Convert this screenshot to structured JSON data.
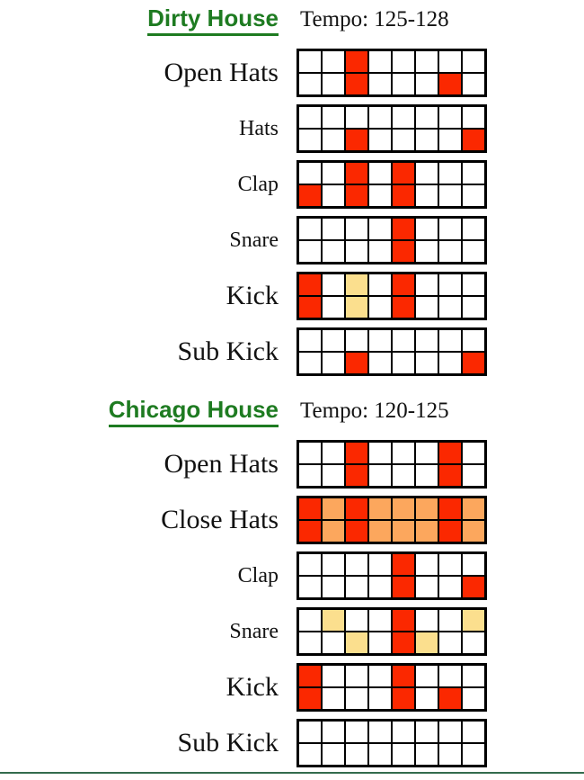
{
  "colors": {
    "red": "#fb2800",
    "orange": "#fca75d",
    "yellow": "#fbdf8e",
    "empty": "#ffffff",
    "title_green": "#1e7b21",
    "divider_green": "#336b4d",
    "grid_line": "#000000"
  },
  "sections": [
    {
      "title": "Dirty House",
      "tempo": "Tempo: 125-128",
      "rows": [
        {
          "label": "Open Hats",
          "steps": [
            [
              "",
              "",
              "red",
              "",
              "",
              "",
              "",
              ""
            ],
            [
              "",
              "",
              "red",
              "",
              "",
              "",
              "red",
              ""
            ]
          ]
        },
        {
          "label": "Hats",
          "steps": [
            [
              "",
              "",
              "",
              "",
              "",
              "",
              "",
              ""
            ],
            [
              "",
              "",
              "red",
              "",
              "",
              "",
              "",
              "red"
            ]
          ]
        },
        {
          "label": "Clap",
          "steps": [
            [
              "",
              "",
              "red",
              "",
              "red",
              "",
              "",
              ""
            ],
            [
              "red",
              "",
              "red",
              "",
              "red",
              "",
              "",
              ""
            ]
          ]
        },
        {
          "label": "Snare",
          "steps": [
            [
              "",
              "",
              "",
              "",
              "red",
              "",
              "",
              ""
            ],
            [
              "",
              "",
              "",
              "",
              "red",
              "",
              "",
              ""
            ]
          ]
        },
        {
          "label": "Kick",
          "steps": [
            [
              "red",
              "",
              "yellow",
              "",
              "red",
              "",
              "",
              ""
            ],
            [
              "red",
              "",
              "yellow",
              "",
              "red",
              "",
              "",
              ""
            ]
          ]
        },
        {
          "label": "Sub Kick",
          "steps": [
            [
              "",
              "",
              "",
              "",
              "",
              "",
              "",
              ""
            ],
            [
              "",
              "",
              "red",
              "",
              "",
              "",
              "",
              "red"
            ]
          ]
        }
      ]
    },
    {
      "title": "Chicago House",
      "tempo": "Tempo: 120-125",
      "rows": [
        {
          "label": "Open Hats",
          "steps": [
            [
              "",
              "",
              "red",
              "",
              "",
              "",
              "red",
              ""
            ],
            [
              "",
              "",
              "red",
              "",
              "",
              "",
              "red",
              ""
            ]
          ]
        },
        {
          "label": "Close Hats",
          "steps": [
            [
              "red",
              "orange",
              "red",
              "orange",
              "orange",
              "orange",
              "red",
              "orange"
            ],
            [
              "red",
              "orange",
              "red",
              "orange",
              "orange",
              "orange",
              "red",
              "orange"
            ]
          ]
        },
        {
          "label": "Clap",
          "steps": [
            [
              "",
              "",
              "",
              "",
              "red",
              "",
              "",
              ""
            ],
            [
              "",
              "",
              "",
              "",
              "red",
              "",
              "",
              "red"
            ]
          ]
        },
        {
          "label": "Snare",
          "steps": [
            [
              "",
              "yellow",
              "",
              "",
              "red",
              "",
              "",
              "yellow"
            ],
            [
              "",
              "",
              "yellow",
              "",
              "red",
              "yellow",
              "",
              ""
            ]
          ]
        },
        {
          "label": "Kick",
          "steps": [
            [
              "red",
              "",
              "",
              "",
              "red",
              "",
              "",
              ""
            ],
            [
              "red",
              "",
              "",
              "",
              "red",
              "",
              "red",
              ""
            ]
          ]
        },
        {
          "label": "Sub Kick",
          "steps": [
            [
              "",
              "",
              "",
              "",
              "",
              "",
              "",
              ""
            ],
            [
              "",
              "",
              "",
              "",
              "",
              "",
              "",
              ""
            ]
          ]
        }
      ]
    }
  ]
}
